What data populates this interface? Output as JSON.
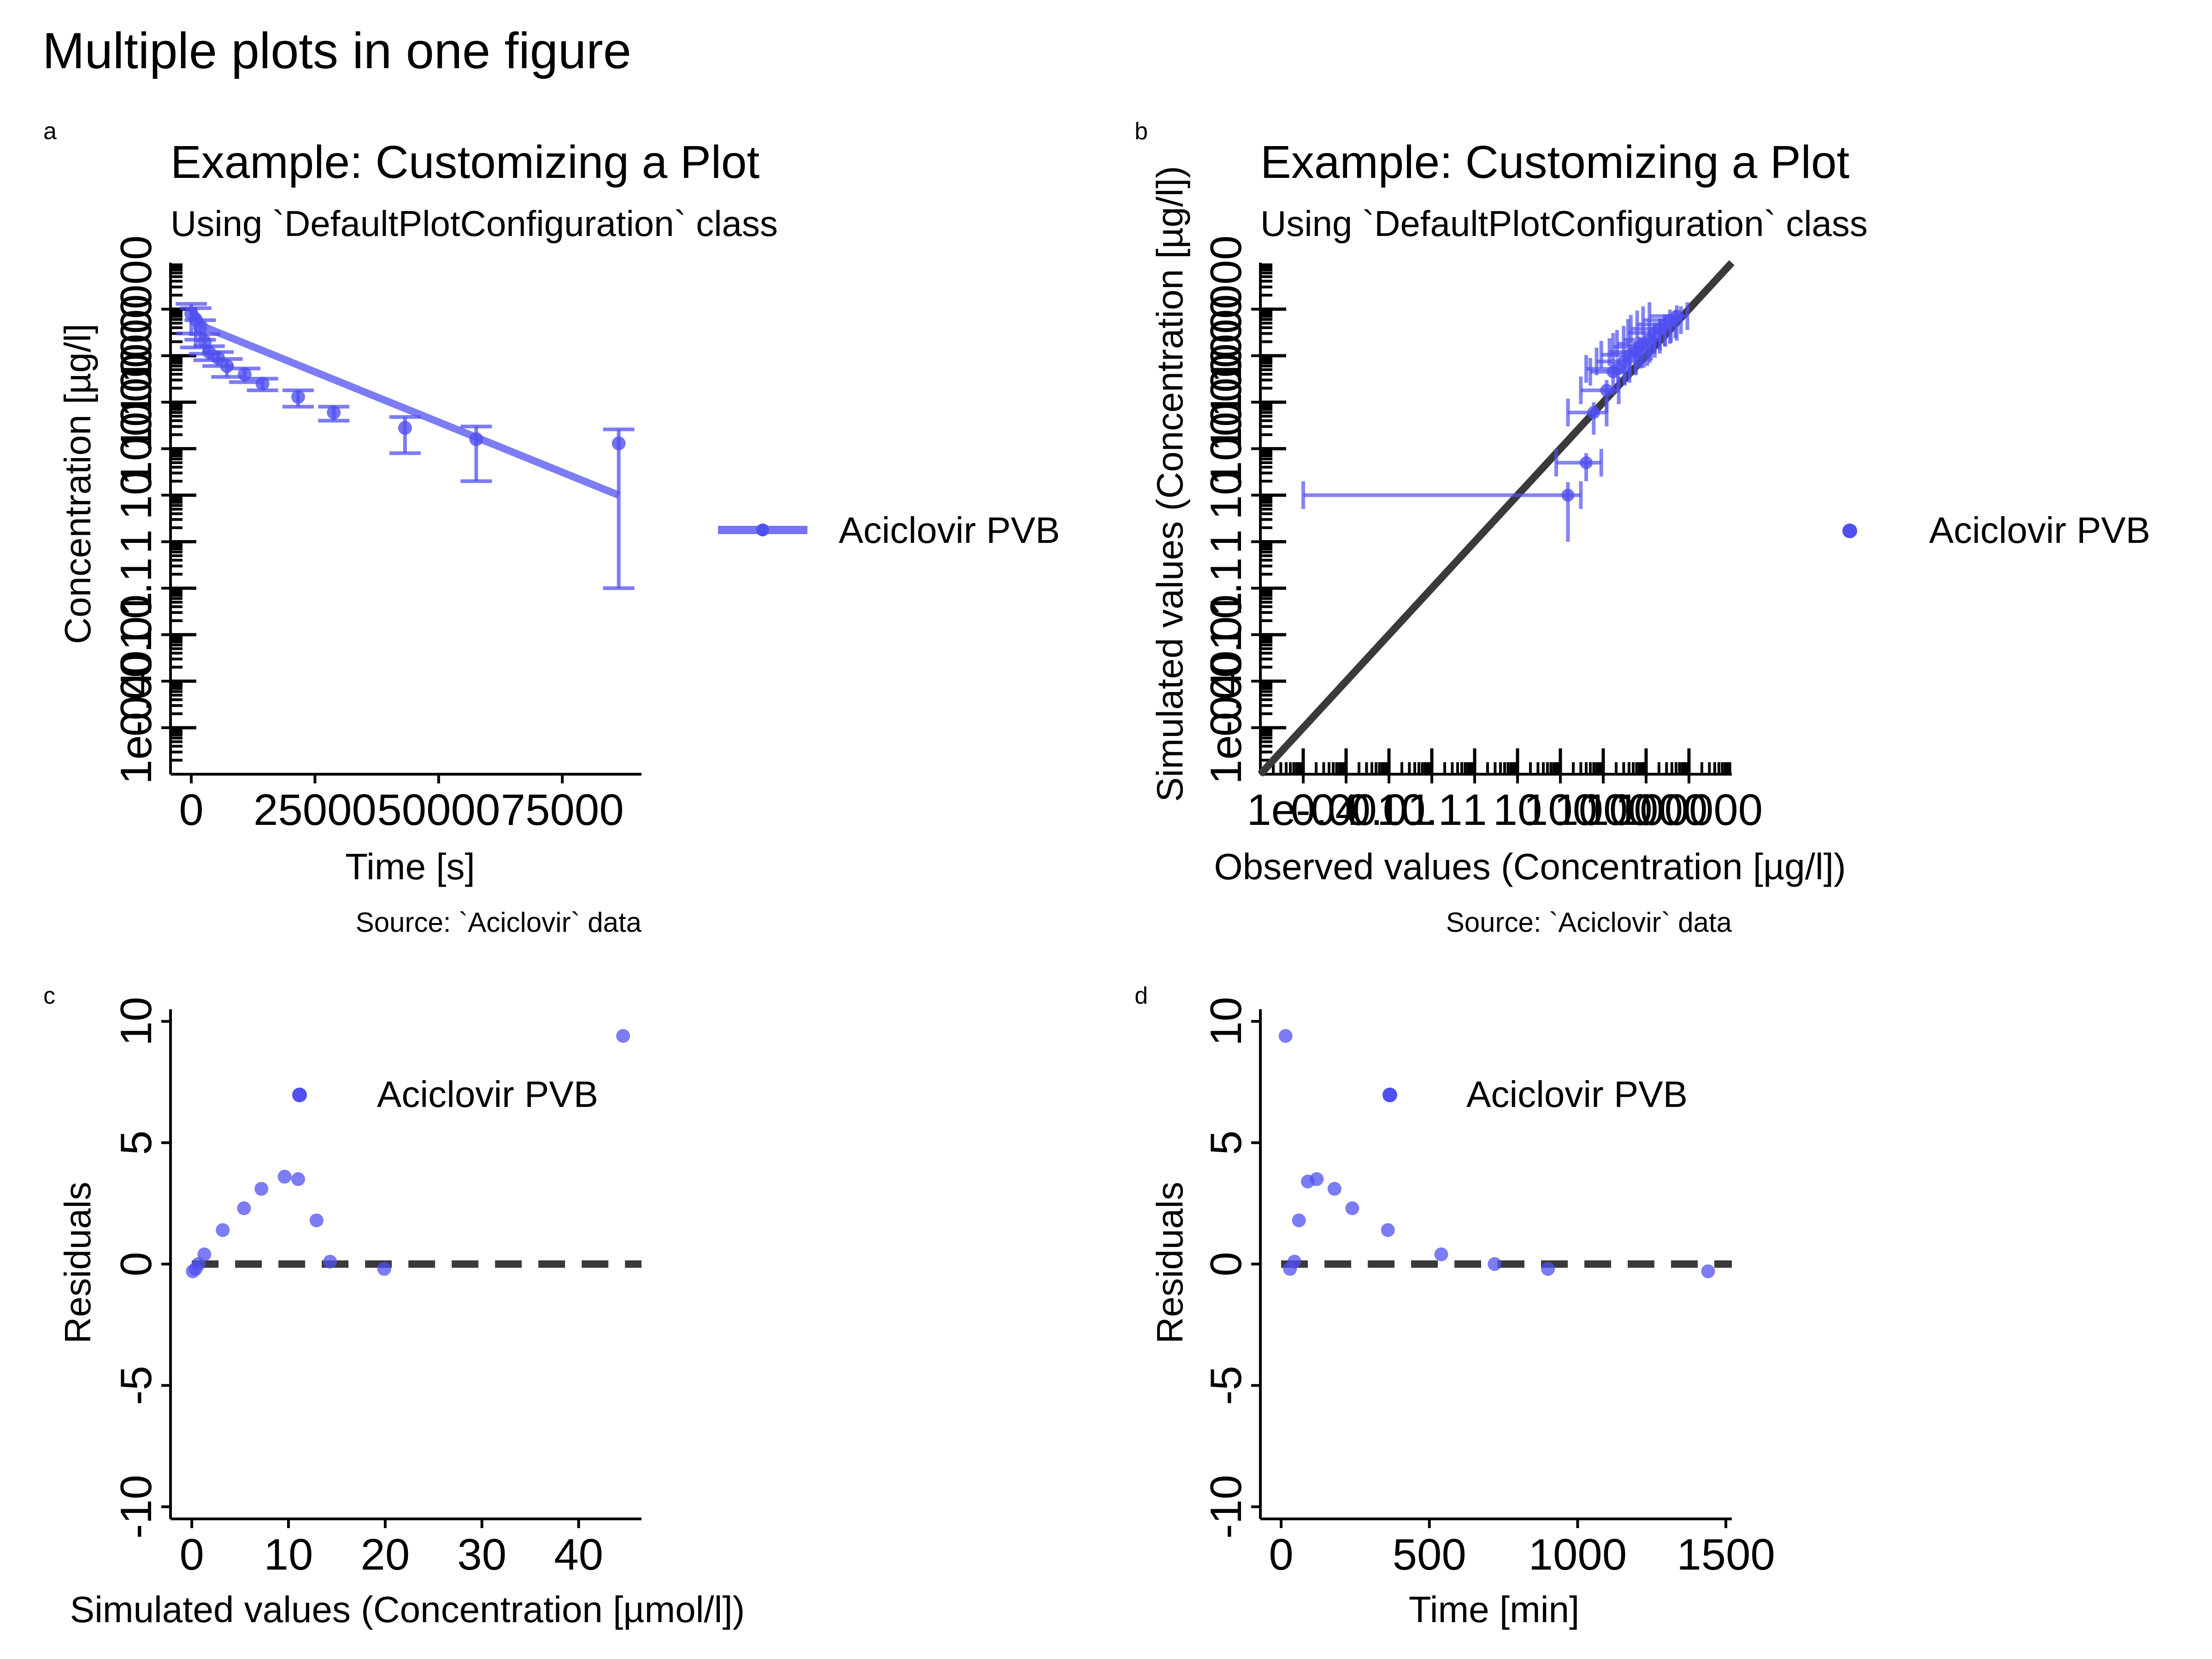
{
  "figure": {
    "title": "Multiple plots in one figure"
  },
  "colors": {
    "series": "#5050f0",
    "identity": "#3a3a3a",
    "axis": "#000000"
  },
  "chart_data": [
    {
      "tag": "a",
      "type": "line",
      "title": "Example: Customizing a Plot",
      "subtitle": "Using `DefaultPlotConfiguration` class",
      "caption": "Source: `Aciclovir` data",
      "xlabel": "Time [s]",
      "ylabel": "Concentration [µg/l]",
      "xlim": [
        -4200,
        91000
      ],
      "x_ticks": [
        0,
        25000,
        50000,
        75000
      ],
      "x_tick_labels": [
        "0",
        "25000",
        "50000",
        "75000"
      ],
      "y_scale": "log",
      "ylim": [
        1e-05,
        1000000
      ],
      "y_ticks": [
        0.0001,
        0.001,
        0.01,
        0.1,
        1,
        10,
        100,
        1000,
        10000,
        100000
      ],
      "y_tick_labels": [
        "1e-04",
        "0.001",
        "0.01",
        "0.1",
        "1",
        "10",
        "100",
        "1000",
        "10000",
        "100000"
      ],
      "legend": {
        "position": "right",
        "entries": [
          "Aciclovir PVB"
        ]
      },
      "series": [
        {
          "name": "Aciclovir PVB",
          "simulated": {
            "x": [
              0,
              1500,
              3000,
              86400
            ],
            "y": [
              100000,
              60000,
              40000,
              10
            ]
          },
          "observed": {
            "x": [
              0,
              900,
              1800,
              2700,
              3600,
              5400,
              7200,
              10800,
              14400,
              21600,
              28800,
              43200,
              57600,
              86400
            ],
            "y": [
              80000,
              60000,
              40000,
              20000,
              12000,
              9000,
              6000,
              4000,
              2500,
              1300,
              600,
              280,
              160,
              130
            ],
            "y_err": [
              50000,
              45000,
              18000,
              9000,
              4000,
              3000,
              2500,
              1300,
              700,
              500,
              200,
              200,
              140,
              129.9
            ]
          }
        }
      ]
    },
    {
      "tag": "b",
      "type": "scatter",
      "title": "Example: Customizing a Plot",
      "subtitle": "Using `DefaultPlotConfiguration` class",
      "caption": "Source: `Aciclovir` data",
      "xlabel": "Observed values (Concentration [µg/l])",
      "ylabel": "Simulated values (Concentration [µg/l])",
      "x_scale": "log",
      "y_scale": "log",
      "xlim": [
        1e-05,
        1000000
      ],
      "ylim": [
        1e-05,
        1000000
      ],
      "x_ticks": [
        0.0001,
        0.001,
        0.01,
        0.1,
        1,
        10,
        100,
        1000,
        10000,
        100000
      ],
      "x_tick_labels": [
        "1e-04",
        "0.001",
        "0.01",
        "0.1",
        "1",
        "10",
        "100",
        "1000",
        "10000",
        "100000"
      ],
      "y_ticks": [
        0.0001,
        0.001,
        0.01,
        0.1,
        1,
        10,
        100,
        1000,
        10000,
        100000
      ],
      "y_tick_labels": [
        "1e-04",
        "0.001",
        "0.01",
        "0.1",
        "1",
        "10",
        "100",
        "1000",
        "10000",
        "100000"
      ],
      "identity_line": true,
      "legend": {
        "position": "right",
        "entries": [
          "Aciclovir PVB"
        ]
      },
      "series": [
        {
          "name": "Aciclovir PVB",
          "x": [
            150,
            400,
            600,
            1200,
            1700,
            2200,
            3100,
            4200,
            5800,
            6900,
            8800,
            12000,
            15800,
            21000,
            27000,
            36000,
            52000
          ],
          "y": [
            10,
            50,
            600,
            1800,
            4500,
            5200,
            7500,
            10500,
            12000,
            15500,
            18000,
            22000,
            31000,
            38000,
            47000,
            58000,
            71000
          ],
          "x_err_low": [
            0.0001,
            80,
            150,
            300,
            500,
            400,
            700,
            900,
            1400,
            1700,
            2100,
            3000,
            3800,
            4400,
            6200,
            8500,
            12000
          ],
          "x_err_high": [
            300,
            900,
            1200,
            2300,
            3200,
            4100,
            5700,
            7600,
            10700,
            13000,
            16000,
            21000,
            28000,
            38000,
            48000,
            65000,
            92000
          ],
          "y_err": [
            9,
            30,
            400,
            1200,
            3000,
            3600,
            4800,
            7000,
            8000,
            10000,
            12500,
            15000,
            20000,
            25000,
            31000,
            40000,
            50000
          ]
        }
      ]
    },
    {
      "tag": "c",
      "type": "scatter",
      "xlabel": "Simulated values (Concentration [µmol/l])",
      "ylabel": "Residuals",
      "xlim": [
        -2.2,
        46.5
      ],
      "ylim": [
        -10.5,
        10.5
      ],
      "x_ticks": [
        0,
        10,
        20,
        30,
        40
      ],
      "x_tick_labels": [
        "0",
        "10",
        "20",
        "30",
        "40"
      ],
      "y_ticks": [
        -10,
        -5,
        0,
        5,
        10
      ],
      "y_tick_labels": [
        "-10",
        "-5",
        "0",
        "5",
        "10"
      ],
      "reference_line": 0,
      "legend": {
        "position": "top",
        "entries": [
          "Aciclovir PVB"
        ]
      },
      "series": [
        {
          "name": "Aciclovir PVB",
          "x": [
            0.1,
            0.4,
            0.7,
            1.3,
            3.2,
            5.4,
            7.2,
            9.6,
            11.0,
            12.9,
            14.3,
            19.9,
            44.6
          ],
          "y": [
            -0.3,
            -0.2,
            0.0,
            0.4,
            1.4,
            2.3,
            3.1,
            3.6,
            3.5,
            1.8,
            0.1,
            -0.2,
            9.4
          ]
        }
      ]
    },
    {
      "tag": "d",
      "type": "scatter",
      "xlabel": "Time [min]",
      "ylabel": "Residuals",
      "xlim": [
        -70,
        1520
      ],
      "ylim": [
        -10.5,
        10.5
      ],
      "x_ticks": [
        0,
        500,
        1000,
        1500
      ],
      "x_tick_labels": [
        "0",
        "500",
        "1000",
        "1500"
      ],
      "y_ticks": [
        -10,
        -5,
        0,
        5,
        10
      ],
      "y_tick_labels": [
        "-10",
        "-5",
        "0",
        "5",
        "10"
      ],
      "reference_line": 0,
      "legend": {
        "position": "top",
        "entries": [
          "Aciclovir PVB"
        ]
      },
      "series": [
        {
          "name": "Aciclovir PVB",
          "x": [
            15,
            30,
            45,
            60,
            90,
            120,
            180,
            240,
            360,
            540,
            720,
            900,
            1440
          ],
          "y": [
            9.4,
            -0.2,
            0.1,
            1.8,
            3.4,
            3.5,
            3.1,
            2.3,
            1.4,
            0.4,
            0.0,
            -0.2,
            -0.3
          ]
        }
      ]
    }
  ]
}
